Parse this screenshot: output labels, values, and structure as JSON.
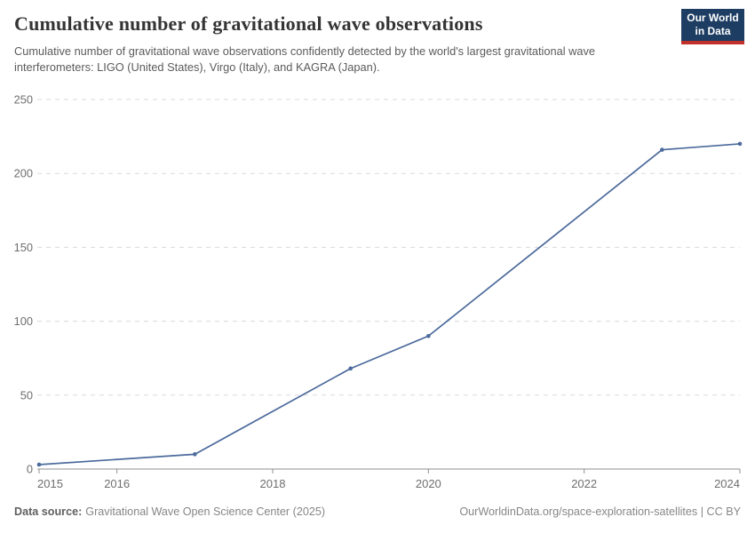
{
  "header": {
    "title": "Cumulative number of gravitational wave observations",
    "subtitle": "Cumulative number of gravitational wave observations confidently detected by the world's largest gravitational wave interferometers: LIGO (United States), Virgo (Italy), and KAGRA (Japan)."
  },
  "logo": {
    "line1": "Our World",
    "line2": "in Data",
    "bg_color": "#1d3d63",
    "accent_color": "#c0312b"
  },
  "chart_data": {
    "type": "line",
    "title": "Cumulative number of gravitational wave observations",
    "series": [
      {
        "name": "Cumulative gravitational wave observations",
        "x": [
          2015,
          2017,
          2019,
          2020,
          2023,
          2024
        ],
        "values": [
          3,
          10,
          68,
          90,
          216,
          220
        ]
      }
    ],
    "xlim": [
      2015,
      2024
    ],
    "ylim": [
      0,
      250
    ],
    "y_ticks": [
      0,
      50,
      100,
      150,
      200,
      250
    ],
    "x_ticks": [
      2015,
      2016,
      2018,
      2020,
      2022,
      2024
    ],
    "grid": "horizontal-dashed",
    "legend": "none",
    "line_color": "#4c6a9c",
    "marker": "circle",
    "gridline_color": "#dadada",
    "axis_color": "#8f8f8f",
    "tick_label_color": "#6e6e6e"
  },
  "footer": {
    "source_label": "Data source:",
    "source_value": "Gravitational Wave Open Science Center (2025)",
    "attribution": "OurWorldinData.org/space-exploration-satellites | CC BY"
  }
}
